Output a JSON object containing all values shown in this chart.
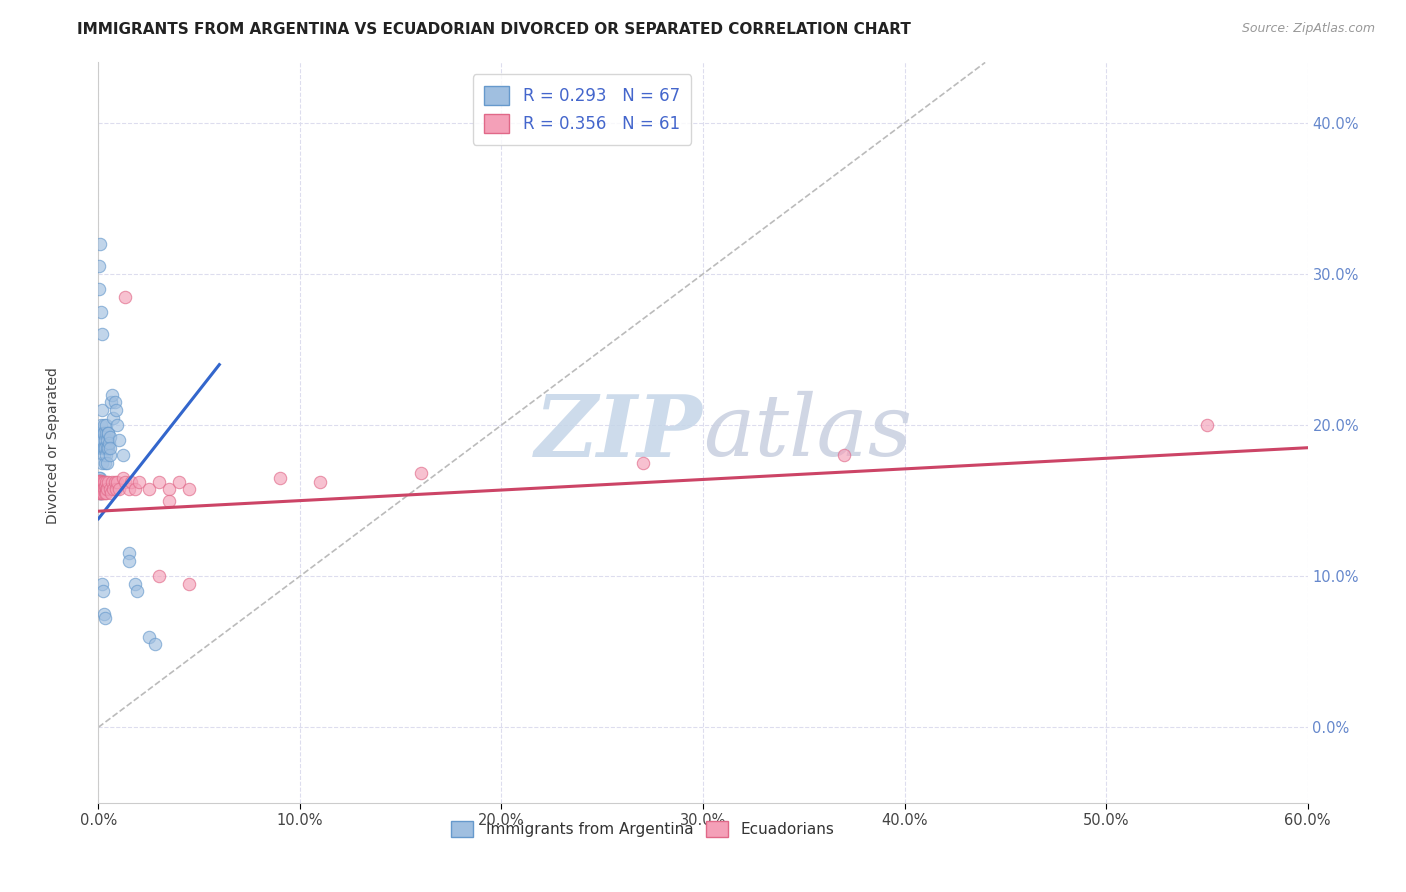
{
  "title": "IMMIGRANTS FROM ARGENTINA VS ECUADORIAN DIVORCED OR SEPARATED CORRELATION CHART",
  "source": "Source: ZipAtlas.com",
  "xlim": [
    0.0,
    0.6
  ],
  "ylim": [
    -0.05,
    0.44
  ],
  "y_tick_vals": [
    0.0,
    0.1,
    0.2,
    0.3,
    0.4
  ],
  "x_tick_vals": [
    0.0,
    0.1,
    0.2,
    0.3,
    0.4,
    0.5,
    0.6
  ],
  "bottom_legend": [
    "Immigrants from Argentina",
    "Ecuadorians"
  ],
  "blue_color": "#a0bfe0",
  "blue_edge": "#6699cc",
  "pink_color": "#f4a0b8",
  "pink_edge": "#e06888",
  "blue_line_color": "#3366cc",
  "pink_line_color": "#cc4466",
  "diag_color": "#bbbbbb",
  "watermark_color": "#d0ddf0",
  "grid_color": "#ddddee",
  "axis_label_color": "#6688cc",
  "title_fontsize": 11,
  "source_fontsize": 9,
  "legend_label_color": "#4466cc",
  "argentina_points": [
    [
      0.0008,
      0.165
    ],
    [
      0.001,
      0.19
    ],
    [
      0.0012,
      0.195
    ],
    [
      0.0015,
      0.2
    ],
    [
      0.0015,
      0.185
    ],
    [
      0.0018,
      0.175
    ],
    [
      0.002,
      0.19
    ],
    [
      0.002,
      0.21
    ],
    [
      0.0022,
      0.185
    ],
    [
      0.0025,
      0.195
    ],
    [
      0.0028,
      0.185
    ],
    [
      0.0028,
      0.2
    ],
    [
      0.003,
      0.18
    ],
    [
      0.003,
      0.195
    ],
    [
      0.0032,
      0.19
    ],
    [
      0.0035,
      0.185
    ],
    [
      0.0035,
      0.175
    ],
    [
      0.0038,
      0.195
    ],
    [
      0.004,
      0.18
    ],
    [
      0.004,
      0.2
    ],
    [
      0.0042,
      0.19
    ],
    [
      0.0045,
      0.185
    ],
    [
      0.0045,
      0.175
    ],
    [
      0.0048,
      0.195
    ],
    [
      0.005,
      0.185
    ],
    [
      0.005,
      0.195
    ],
    [
      0.0052,
      0.188
    ],
    [
      0.0055,
      0.18
    ],
    [
      0.0055,
      0.192
    ],
    [
      0.0058,
      0.185
    ],
    [
      0.0002,
      0.165
    ],
    [
      0.0003,
      0.163
    ],
    [
      0.0004,
      0.161
    ],
    [
      0.0004,
      0.158
    ],
    [
      0.0005,
      0.16
    ],
    [
      0.0005,
      0.162
    ],
    [
      0.0006,
      0.158
    ],
    [
      0.0006,
      0.16
    ],
    [
      0.0007,
      0.163
    ],
    [
      0.0007,
      0.157
    ],
    [
      0.0008,
      0.155
    ],
    [
      0.0009,
      0.158
    ],
    [
      0.001,
      0.162
    ],
    [
      0.001,
      0.155
    ],
    [
      0.0012,
      0.158
    ],
    [
      0.0015,
      0.155
    ],
    [
      0.0018,
      0.158
    ],
    [
      0.002,
      0.155
    ],
    [
      0.0003,
      0.29
    ],
    [
      0.0005,
      0.305
    ],
    [
      0.0007,
      0.32
    ],
    [
      0.0015,
      0.275
    ],
    [
      0.0018,
      0.26
    ],
    [
      0.006,
      0.215
    ],
    [
      0.0065,
      0.22
    ],
    [
      0.007,
      0.205
    ],
    [
      0.008,
      0.215
    ],
    [
      0.0085,
      0.21
    ],
    [
      0.009,
      0.2
    ],
    [
      0.01,
      0.19
    ],
    [
      0.012,
      0.18
    ],
    [
      0.015,
      0.115
    ],
    [
      0.015,
      0.11
    ],
    [
      0.018,
      0.095
    ],
    [
      0.019,
      0.09
    ],
    [
      0.025,
      0.06
    ],
    [
      0.028,
      0.055
    ],
    [
      0.002,
      0.095
    ],
    [
      0.0025,
      0.09
    ],
    [
      0.003,
      0.075
    ],
    [
      0.0035,
      0.072
    ]
  ],
  "ecuador_points": [
    [
      0.0002,
      0.16
    ],
    [
      0.0003,
      0.158
    ],
    [
      0.0004,
      0.162
    ],
    [
      0.0005,
      0.155
    ],
    [
      0.0005,
      0.163
    ],
    [
      0.0006,
      0.158
    ],
    [
      0.0006,
      0.162
    ],
    [
      0.0007,
      0.156
    ],
    [
      0.0007,
      0.16
    ],
    [
      0.0008,
      0.158
    ],
    [
      0.0008,
      0.163
    ],
    [
      0.0009,
      0.157
    ],
    [
      0.001,
      0.16
    ],
    [
      0.001,
      0.155
    ],
    [
      0.0012,
      0.158
    ],
    [
      0.0012,
      0.163
    ],
    [
      0.0015,
      0.158
    ],
    [
      0.0015,
      0.162
    ],
    [
      0.0018,
      0.155
    ],
    [
      0.0018,
      0.16
    ],
    [
      0.002,
      0.158
    ],
    [
      0.0022,
      0.162
    ],
    [
      0.0025,
      0.158
    ],
    [
      0.0025,
      0.155
    ],
    [
      0.0028,
      0.162
    ],
    [
      0.003,
      0.158
    ],
    [
      0.0032,
      0.16
    ],
    [
      0.0035,
      0.155
    ],
    [
      0.0038,
      0.158
    ],
    [
      0.004,
      0.162
    ],
    [
      0.004,
      0.155
    ],
    [
      0.0045,
      0.158
    ],
    [
      0.005,
      0.162
    ],
    [
      0.0055,
      0.158
    ],
    [
      0.006,
      0.155
    ],
    [
      0.0065,
      0.162
    ],
    [
      0.007,
      0.158
    ],
    [
      0.008,
      0.162
    ],
    [
      0.0085,
      0.158
    ],
    [
      0.009,
      0.162
    ],
    [
      0.01,
      0.158
    ],
    [
      0.012,
      0.165
    ],
    [
      0.013,
      0.162
    ],
    [
      0.015,
      0.158
    ],
    [
      0.016,
      0.162
    ],
    [
      0.018,
      0.158
    ],
    [
      0.02,
      0.162
    ],
    [
      0.025,
      0.158
    ],
    [
      0.03,
      0.162
    ],
    [
      0.035,
      0.158
    ],
    [
      0.035,
      0.15
    ],
    [
      0.04,
      0.162
    ],
    [
      0.045,
      0.158
    ],
    [
      0.09,
      0.165
    ],
    [
      0.11,
      0.162
    ],
    [
      0.16,
      0.168
    ],
    [
      0.27,
      0.175
    ],
    [
      0.37,
      0.18
    ],
    [
      0.55,
      0.2
    ],
    [
      0.013,
      0.285
    ],
    [
      0.03,
      0.1
    ],
    [
      0.045,
      0.095
    ]
  ],
  "blue_line_x": [
    0.0,
    0.06
  ],
  "blue_line_y": [
    0.138,
    0.24
  ],
  "pink_line_x": [
    0.0,
    0.6
  ],
  "pink_line_y": [
    0.143,
    0.185
  ],
  "diag_line_x": [
    0.0,
    0.44
  ],
  "diag_line_y": [
    0.0,
    0.44
  ]
}
